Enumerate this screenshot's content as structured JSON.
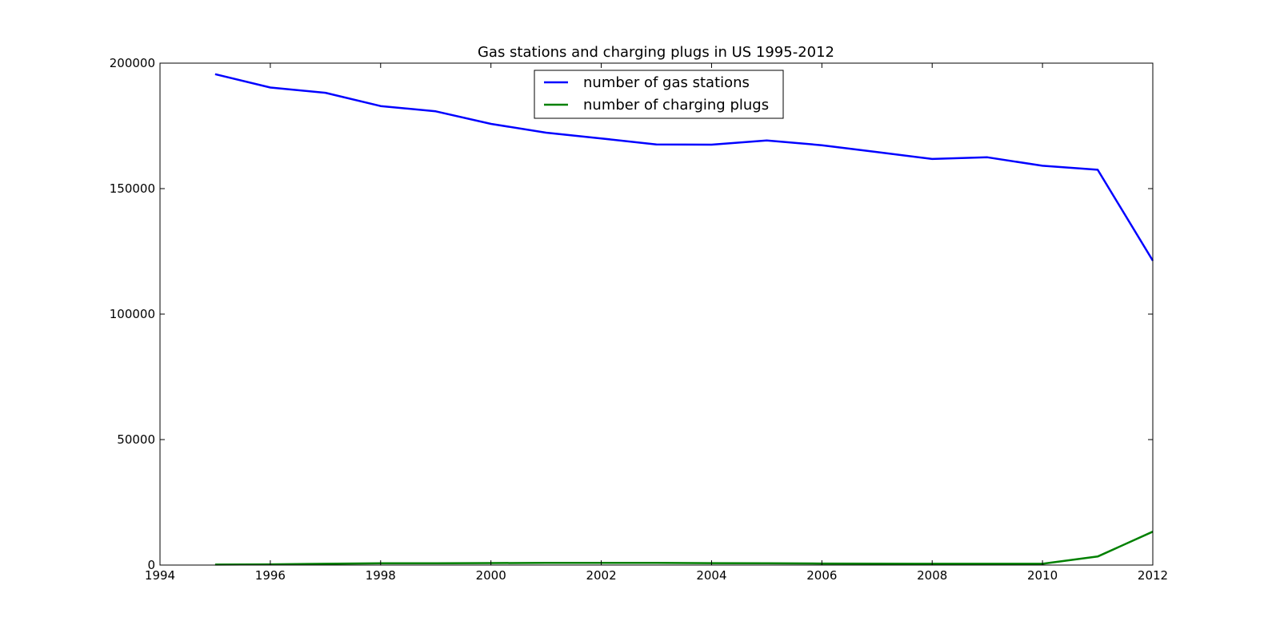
{
  "chart_data": {
    "type": "line",
    "title": "Gas stations and charging plugs in US 1995-2012",
    "xlabel": "",
    "ylabel": "",
    "xlim": [
      1994,
      2012
    ],
    "ylim": [
      0,
      200000
    ],
    "x_ticks": [
      1994,
      1996,
      1998,
      2000,
      2002,
      2004,
      2006,
      2008,
      2010,
      2012
    ],
    "y_ticks": [
      0,
      50000,
      100000,
      150000,
      200000
    ],
    "grid": false,
    "legend_position": "upper center",
    "x": [
      1995,
      1996,
      1997,
      1998,
      1999,
      2000,
      2001,
      2002,
      2003,
      2004,
      2005,
      2006,
      2007,
      2008,
      2009,
      2010,
      2011,
      2012
    ],
    "series": [
      {
        "name": "number of gas stations",
        "color": "#0000ff",
        "values": [
          195600,
          190300,
          188200,
          182900,
          180800,
          175800,
          172300,
          170000,
          167600,
          167500,
          169200,
          167300,
          164600,
          161800,
          162500,
          159100,
          157500,
          121300
        ]
      },
      {
        "name": "number of charging plugs",
        "color": "#008000",
        "values": [
          200,
          300,
          500,
          700,
          700,
          800,
          850,
          900,
          850,
          750,
          700,
          600,
          550,
          500,
          500,
          500,
          3400,
          13300
        ]
      }
    ]
  }
}
